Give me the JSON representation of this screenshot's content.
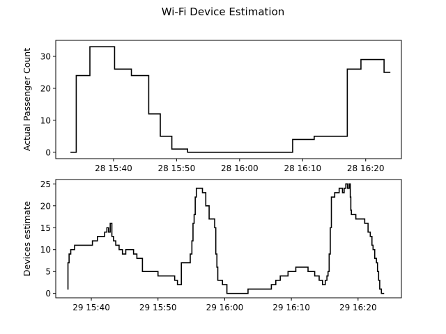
{
  "figure_title": "Wi-Fi Device Estimation",
  "chart_data": [
    {
      "type": "line",
      "step": true,
      "title": "",
      "xlabel": "",
      "ylabel": "Actual Passenger Count",
      "xlim": [
        "28 15:30:50",
        "28 16:25:40"
      ],
      "ylim": [
        -2,
        35
      ],
      "yticks": [
        0,
        10,
        20,
        30
      ],
      "xticks": [
        {
          "t": "28 15:40:00",
          "label": "28 15:40"
        },
        {
          "t": "28 15:50:00",
          "label": "28 15:50"
        },
        {
          "t": "28 16:00:00",
          "label": "28 16:00"
        },
        {
          "t": "28 16:10:00",
          "label": "28 16:10"
        },
        {
          "t": "28 16:20:00",
          "label": "28 16:20"
        }
      ],
      "series": [
        {
          "color": "#000000",
          "x": [
            "28 15:33:10",
            "28 15:34:05",
            "28 15:34:05",
            "28 15:36:15",
            "28 15:36:15",
            "28 15:40:10",
            "28 15:40:10",
            "28 15:42:50",
            "28 15:42:50",
            "28 15:45:35",
            "28 15:45:35",
            "28 15:47:25",
            "28 15:47:25",
            "28 15:49:15",
            "28 15:49:15",
            "28 15:51:45",
            "28 15:51:45",
            "28 15:53:40",
            "28 15:53:40",
            "28 16:08:25",
            "28 16:08:25",
            "28 16:11:50",
            "28 16:11:50",
            "28 16:17:05",
            "28 16:17:05",
            "28 16:19:15",
            "28 16:19:15",
            "28 16:22:55",
            "28 16:22:55",
            "28 16:23:55"
          ],
          "y": [
            0,
            0,
            24,
            24,
            33,
            33,
            26,
            26,
            24,
            24,
            12,
            12,
            5,
            5,
            1,
            1,
            0,
            0,
            0,
            0,
            4,
            4,
            5,
            5,
            26,
            26,
            29,
            29,
            25,
            25
          ]
        }
      ]
    },
    {
      "type": "line",
      "step": true,
      "title": "",
      "xlabel": "",
      "ylabel": "Devices estimate",
      "xlim": [
        "29 15:34:40",
        "29 16:26:30"
      ],
      "ylim": [
        -1,
        26
      ],
      "yticks": [
        0,
        5,
        10,
        15,
        20,
        25
      ],
      "xticks": [
        {
          "t": "29 15:40:00",
          "label": "29 15:40"
        },
        {
          "t": "29 15:50:00",
          "label": "29 15:50"
        },
        {
          "t": "29 16:00:00",
          "label": "29 16:00"
        },
        {
          "t": "29 16:10:00",
          "label": "29 16:10"
        },
        {
          "t": "29 16:20:00",
          "label": "29 16:20"
        }
      ],
      "series": [
        {
          "color": "#000000",
          "x": [
            "29 15:36:25",
            "29 15:36:30",
            "29 15:36:40",
            "29 15:36:55",
            "29 15:37:10",
            "29 15:37:30",
            "29 15:38:30",
            "29 15:39:30",
            "29 15:40:10",
            "29 15:40:55",
            "29 15:41:40",
            "29 15:42:00",
            "29 15:42:10",
            "29 15:42:20",
            "29 15:42:35",
            "29 15:42:50",
            "29 15:43:05",
            "29 15:43:20",
            "29 15:43:40",
            "29 15:44:10",
            "29 15:44:40",
            "29 15:45:10",
            "29 15:45:40",
            "29 15:46:20",
            "29 15:46:50",
            "29 15:47:40",
            "29 15:50:00",
            "29 15:52:00",
            "29 15:52:30",
            "29 15:52:55",
            "29 15:53:30",
            "29 15:54:30",
            "29 15:54:50",
            "29 15:55:05",
            "29 15:55:15",
            "29 15:55:25",
            "29 15:55:35",
            "29 15:55:45",
            "29 15:56:00",
            "29 15:56:40",
            "29 15:57:10",
            "29 15:57:40",
            "29 15:58:30",
            "29 15:58:40",
            "29 15:58:50",
            "29 15:58:58",
            "29 15:59:05",
            "29 15:59:40",
            "29 16:00:20",
            "29 16:01:30",
            "29 16:02:00",
            "29 16:03:30",
            "29 16:04:30",
            "29 16:05:30",
            "29 16:06:40",
            "29 16:07:00",
            "29 16:07:40",
            "29 16:08:20",
            "29 16:09:30",
            "29 16:10:40",
            "29 16:11:30",
            "29 16:12:30",
            "29 16:13:30",
            "29 16:14:10",
            "29 16:14:40",
            "29 16:15:05",
            "29 16:15:20",
            "29 16:15:30",
            "29 16:15:40",
            "29 16:15:50",
            "29 16:16:00",
            "29 16:16:30",
            "29 16:17:10",
            "29 16:17:25",
            "29 16:17:40",
            "29 16:17:55",
            "29 16:18:10",
            "29 16:18:25",
            "29 16:18:40",
            "29 16:18:50",
            "29 16:18:55",
            "29 16:19:00",
            "29 16:19:40",
            "29 16:20:20",
            "29 16:21:00",
            "29 16:21:30",
            "29 16:21:50",
            "29 16:22:05",
            "29 16:22:15",
            "29 16:22:30",
            "29 16:22:45",
            "29 16:22:55",
            "29 16:23:05",
            "29 16:23:15",
            "29 16:23:30",
            "29 16:23:55"
          ],
          "y": [
            1,
            7,
            9,
            10,
            10,
            11,
            11,
            11,
            12,
            13,
            13,
            14,
            14,
            15,
            14,
            16,
            13,
            12,
            11,
            10,
            9,
            10,
            10,
            9,
            8,
            5,
            4,
            4,
            3,
            2,
            7,
            7,
            9,
            12,
            16,
            18,
            22,
            24,
            24,
            23,
            20,
            17,
            15,
            9,
            6,
            3,
            3,
            2,
            0,
            0,
            0,
            1,
            1,
            1,
            1,
            2,
            3,
            4,
            5,
            6,
            6,
            5,
            4,
            3,
            2,
            3,
            4,
            5,
            9,
            15,
            22,
            23,
            24,
            24,
            23,
            24,
            25,
            24,
            25,
            22,
            19,
            18,
            17,
            17,
            16,
            14,
            13,
            11,
            10,
            8,
            7,
            5,
            3,
            1,
            0,
            0
          ]
        }
      ]
    }
  ]
}
